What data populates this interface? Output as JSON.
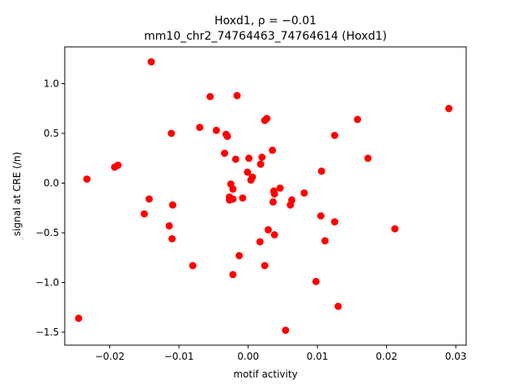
{
  "chart_data": {
    "type": "scatter",
    "title_line1": "Hoxd1, ρ = −0.01",
    "title_line2": "mm10_chr2_74764463_74764614 (Hoxd1)",
    "xlabel": "motif activity",
    "ylabel": "signal at CRE (/n)",
    "xlim": [
      -0.0265,
      0.0315
    ],
    "ylim": [
      -1.63,
      1.37
    ],
    "xticks": [
      -0.02,
      -0.01,
      0.0,
      0.01,
      0.02,
      0.03
    ],
    "xtick_labels": [
      "−0.02",
      "−0.01",
      "0.00",
      "0.01",
      "0.02",
      "0.03"
    ],
    "yticks": [
      -1.5,
      -1.0,
      -0.5,
      0.0,
      0.5,
      1.0
    ],
    "ytick_labels": [
      "−1.5",
      "−1.0",
      "−0.5",
      "0.0",
      "0.5",
      "1.0"
    ],
    "grid": false,
    "marker_color": "#ff0000",
    "points": [
      {
        "x": -0.014,
        "y": 1.22
      },
      {
        "x": -0.0055,
        "y": 0.87
      },
      {
        "x": -0.0016,
        "y": 0.88
      },
      {
        "x": 0.029,
        "y": 0.75
      },
      {
        "x": 0.0027,
        "y": 0.65
      },
      {
        "x": 0.0024,
        "y": 0.63
      },
      {
        "x": 0.0158,
        "y": 0.64
      },
      {
        "x": -0.0111,
        "y": 0.5
      },
      {
        "x": -0.007,
        "y": 0.56
      },
      {
        "x": -0.0046,
        "y": 0.53
      },
      {
        "x": -0.0032,
        "y": 0.49
      },
      {
        "x": -0.003,
        "y": 0.47
      },
      {
        "x": 0.0125,
        "y": 0.48
      },
      {
        "x": 0.0035,
        "y": 0.33
      },
      {
        "x": -0.0034,
        "y": 0.3
      },
      {
        "x": -0.0018,
        "y": 0.24
      },
      {
        "x": 0.0001,
        "y": 0.25
      },
      {
        "x": 0.002,
        "y": 0.26
      },
      {
        "x": 0.0173,
        "y": 0.25
      },
      {
        "x": -0.0188,
        "y": 0.18
      },
      {
        "x": -0.0193,
        "y": 0.16
      },
      {
        "x": 0.0018,
        "y": 0.19
      },
      {
        "x": 0.0106,
        "y": 0.12
      },
      {
        "x": -0.0001,
        "y": 0.11
      },
      {
        "x": 0.0006,
        "y": 0.06
      },
      {
        "x": 0.0004,
        "y": 0.03
      },
      {
        "x": -0.0233,
        "y": 0.04
      },
      {
        "x": -0.0025,
        "y": -0.01
      },
      {
        "x": -0.0022,
        "y": -0.06
      },
      {
        "x": 0.0046,
        "y": -0.05
      },
      {
        "x": 0.0037,
        "y": -0.08
      },
      {
        "x": 0.0038,
        "y": -0.11
      },
      {
        "x": 0.0081,
        "y": -0.1
      },
      {
        "x": -0.0027,
        "y": -0.14
      },
      {
        "x": -0.0022,
        "y": -0.16
      },
      {
        "x": -0.0027,
        "y": -0.17
      },
      {
        "x": -0.0008,
        "y": -0.15
      },
      {
        "x": -0.0143,
        "y": -0.16
      },
      {
        "x": 0.0036,
        "y": -0.19
      },
      {
        "x": 0.0063,
        "y": -0.17
      },
      {
        "x": 0.0061,
        "y": -0.22
      },
      {
        "x": -0.0109,
        "y": -0.22
      },
      {
        "x": -0.015,
        "y": -0.31
      },
      {
        "x": 0.0105,
        "y": -0.33
      },
      {
        "x": 0.0125,
        "y": -0.39
      },
      {
        "x": -0.0114,
        "y": -0.43
      },
      {
        "x": 0.0212,
        "y": -0.46
      },
      {
        "x": 0.0029,
        "y": -0.47
      },
      {
        "x": 0.0038,
        "y": -0.52
      },
      {
        "x": -0.011,
        "y": -0.56
      },
      {
        "x": 0.0111,
        "y": -0.58
      },
      {
        "x": 0.0017,
        "y": -0.59
      },
      {
        "x": -0.0013,
        "y": -0.73
      },
      {
        "x": -0.008,
        "y": -0.83
      },
      {
        "x": 0.0024,
        "y": -0.83
      },
      {
        "x": -0.0022,
        "y": -0.92
      },
      {
        "x": 0.0098,
        "y": -0.99
      },
      {
        "x": 0.013,
        "y": -1.24
      },
      {
        "x": -0.0245,
        "y": -1.36
      },
      {
        "x": 0.0054,
        "y": -1.48
      }
    ]
  }
}
